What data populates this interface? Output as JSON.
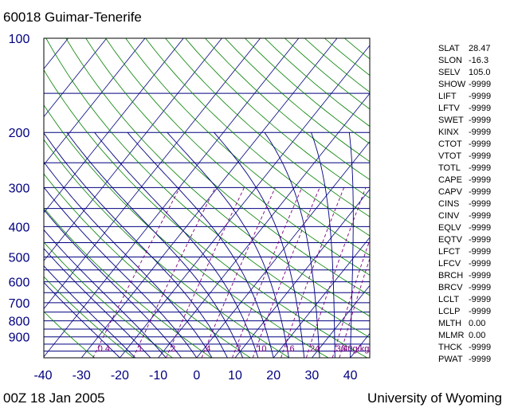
{
  "header": {
    "title": "60018  Guimar-Tenerife"
  },
  "footer": {
    "time": "00Z 18 Jan 2005",
    "source": "University of Wyoming"
  },
  "colors": {
    "isobar": "#000080",
    "isotherm": "#000080",
    "dry_adiabat": "#008000",
    "moist_adiabat": "#000080",
    "mixing_ratio": "#800080",
    "axis_text": "#000080",
    "frame": "#000000"
  },
  "chart_data": {
    "type": "skew-t",
    "title": "60018  Guimar-Tenerife",
    "y_axis": {
      "label": "",
      "scale": "log",
      "range_hpa": [
        1050,
        100
      ],
      "tick_labels": [
        "100",
        "200",
        "300",
        "400",
        "500",
        "600",
        "700",
        "800",
        "900"
      ]
    },
    "x_axis": {
      "label": "",
      "range_c": [
        -40,
        45
      ],
      "tick_labels": [
        "-40",
        "-30",
        "-20",
        "-10",
        "0",
        "10",
        "20",
        "30",
        "40"
      ]
    },
    "mixing_ratio_labels": [
      "0.4",
      "1",
      "2",
      "4",
      "7",
      "10",
      "16",
      "24",
      "36",
      "40g/kg"
    ],
    "grid": true,
    "sounding": []
  },
  "indices": [
    {
      "name": "SLAT",
      "value": "28.47"
    },
    {
      "name": "SLON",
      "value": "-16.3"
    },
    {
      "name": "SELV",
      "value": "105.0"
    },
    {
      "name": "SHOW",
      "value": "-9999"
    },
    {
      "name": "LIFT",
      "value": "-9999"
    },
    {
      "name": "LFTV",
      "value": "-9999"
    },
    {
      "name": "SWET",
      "value": "-9999"
    },
    {
      "name": "KINX",
      "value": "-9999"
    },
    {
      "name": "CTOT",
      "value": "-9999"
    },
    {
      "name": "VTOT",
      "value": "-9999"
    },
    {
      "name": "TOTL",
      "value": "-9999"
    },
    {
      "name": "CAPE",
      "value": "-9999"
    },
    {
      "name": "CAPV",
      "value": "-9999"
    },
    {
      "name": "CINS",
      "value": "-9999"
    },
    {
      "name": "CINV",
      "value": "-9999"
    },
    {
      "name": "EQLV",
      "value": "-9999"
    },
    {
      "name": "EQTV",
      "value": "-9999"
    },
    {
      "name": "LFCT",
      "value": "-9999"
    },
    {
      "name": "LFCV",
      "value": "-9999"
    },
    {
      "name": "BRCH",
      "value": "-9999"
    },
    {
      "name": "BRCV",
      "value": "-9999"
    },
    {
      "name": "LCLT",
      "value": "-9999"
    },
    {
      "name": "LCLP",
      "value": "-9999"
    },
    {
      "name": "MLTH",
      "value": "0.00"
    },
    {
      "name": "MLMR",
      "value": "0.00"
    },
    {
      "name": "THCK",
      "value": "-9999"
    },
    {
      "name": "PWAT",
      "value": "-9999"
    }
  ]
}
